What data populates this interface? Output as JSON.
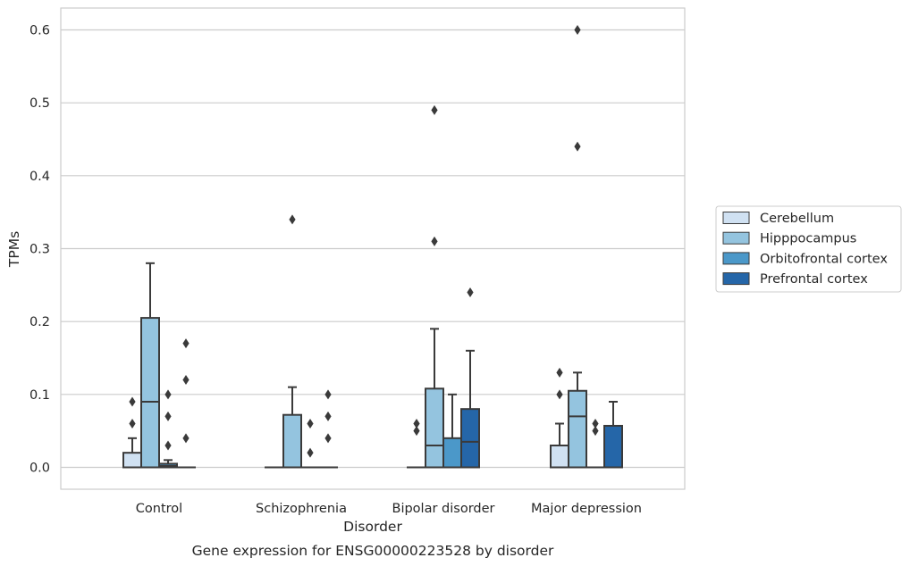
{
  "chart_data": {
    "type": "box",
    "title": "Gene expression for ENSG00000223528 by disorder",
    "xlabel": "Disorder",
    "ylabel": "TPMs",
    "ylim": [
      -0.03,
      0.63
    ],
    "yticks": [
      0.0,
      0.1,
      0.2,
      0.3,
      0.4,
      0.5,
      0.6
    ],
    "ytick_labels": [
      "0.0",
      "0.1",
      "0.2",
      "0.3",
      "0.4",
      "0.5",
      "0.6"
    ],
    "grid": "horizontal",
    "legend_position": "right",
    "categories": [
      "Control",
      "Schizophrenia",
      "Bipolar disorder",
      "Major depression"
    ],
    "series": [
      {
        "name": "Cerebellum",
        "color": "#d0e1f2",
        "boxes": [
          {
            "q1": 0.0,
            "median": 0.0,
            "q3": 0.02,
            "whislo": 0.0,
            "whishi": 0.04,
            "fliers": [
              0.06,
              0.09
            ]
          },
          {
            "q1": 0.0,
            "median": 0.0,
            "q3": 0.0,
            "whislo": 0.0,
            "whishi": 0.0,
            "fliers": []
          },
          {
            "q1": 0.0,
            "median": 0.0,
            "q3": 0.0,
            "whislo": 0.0,
            "whishi": 0.0,
            "fliers": [
              0.05,
              0.06
            ]
          },
          {
            "q1": 0.0,
            "median": 0.0,
            "q3": 0.03,
            "whislo": 0.0,
            "whishi": 0.06,
            "fliers": [
              0.1,
              0.13
            ]
          }
        ]
      },
      {
        "name": "Hipppocampus",
        "color": "#94c4df",
        "boxes": [
          {
            "q1": 0.0,
            "median": 0.09,
            "q3": 0.205,
            "whislo": 0.0,
            "whishi": 0.28,
            "fliers": []
          },
          {
            "q1": 0.0,
            "median": 0.0,
            "q3": 0.072,
            "whislo": 0.0,
            "whishi": 0.11,
            "fliers": [
              0.34
            ]
          },
          {
            "q1": 0.0,
            "median": 0.03,
            "q3": 0.108,
            "whislo": 0.0,
            "whishi": 0.19,
            "fliers": [
              0.31,
              0.49
            ]
          },
          {
            "q1": 0.0,
            "median": 0.07,
            "q3": 0.105,
            "whislo": 0.0,
            "whishi": 0.13,
            "fliers": [
              0.44,
              0.6
            ]
          }
        ]
      },
      {
        "name": "Orbitofrontal cortex",
        "color": "#4b98c9",
        "boxes": [
          {
            "q1": 0.0,
            "median": 0.002,
            "q3": 0.005,
            "whislo": 0.0,
            "whishi": 0.01,
            "fliers": [
              0.03,
              0.07,
              0.1
            ]
          },
          {
            "q1": 0.0,
            "median": 0.0,
            "q3": 0.0,
            "whislo": 0.0,
            "whishi": 0.0,
            "fliers": [
              0.02,
              0.06
            ]
          },
          {
            "q1": 0.0,
            "median": 0.0,
            "q3": 0.04,
            "whislo": 0.0,
            "whishi": 0.1,
            "fliers": []
          },
          {
            "q1": 0.0,
            "median": 0.0,
            "q3": 0.0,
            "whislo": 0.0,
            "whishi": 0.0,
            "fliers": [
              0.05,
              0.06
            ]
          }
        ]
      },
      {
        "name": "Prefrontal cortex",
        "color": "#2566a8",
        "boxes": [
          {
            "q1": 0.0,
            "median": 0.0,
            "q3": 0.0,
            "whislo": 0.0,
            "whishi": 0.0,
            "fliers": [
              0.04,
              0.12,
              0.17
            ]
          },
          {
            "q1": 0.0,
            "median": 0.0,
            "q3": 0.0,
            "whislo": 0.0,
            "whishi": 0.0,
            "fliers": [
              0.04,
              0.07,
              0.1
            ]
          },
          {
            "q1": 0.0,
            "median": 0.035,
            "q3": 0.08,
            "whislo": 0.0,
            "whishi": 0.16,
            "fliers": [
              0.24
            ]
          },
          {
            "q1": 0.0,
            "median": 0.0,
            "q3": 0.057,
            "whislo": 0.0,
            "whishi": 0.09,
            "fliers": []
          }
        ]
      }
    ]
  }
}
